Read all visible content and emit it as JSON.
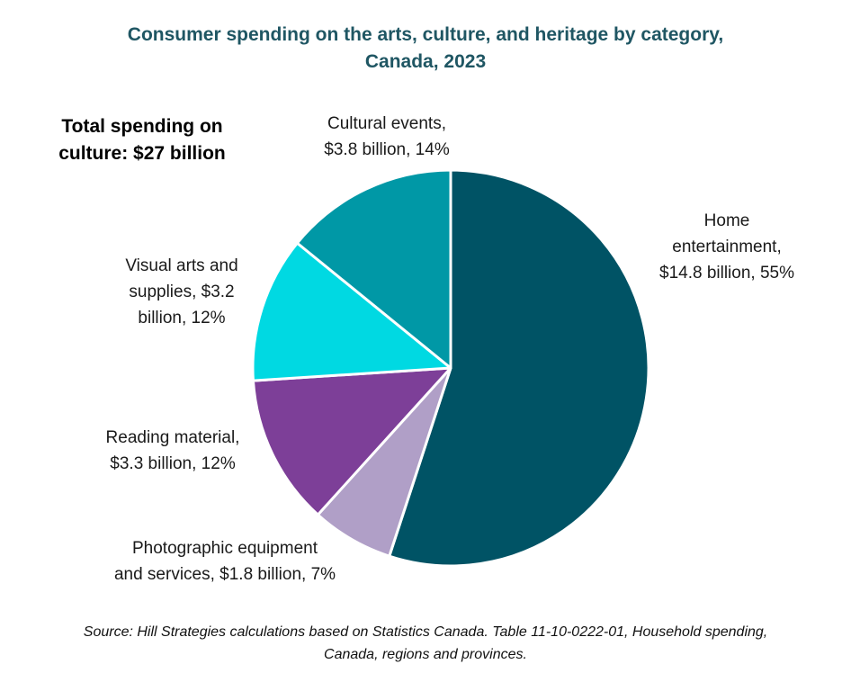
{
  "chart_data": {
    "type": "pie",
    "title": "Consumer spending on the arts, culture, and heritage by category,",
    "subtitle": "Canada, 2023",
    "annotation_lines": [
      "Total spending on",
      "culture: $27 billion"
    ],
    "source_lines": [
      "Source: Hill Strategies calculations based on Statistics Canada. Table 11-10-0222-01, Household spending,",
      "Canada, regions and provinces."
    ],
    "start_angle_deg": 0,
    "direction": "clockwise",
    "slices": [
      {
        "name": "Home entertainment",
        "value": 14.8,
        "percent": 55,
        "color": "#005365",
        "label_lines": [
          "Home",
          "entertainment,",
          "$14.8 billion, 55%"
        ]
      },
      {
        "name": "Photographic equipment and services",
        "value": 1.8,
        "percent": 7,
        "color": "#b09fc7",
        "label_lines": [
          "Photographic equipment",
          "and services, $1.8 billion, 7%"
        ]
      },
      {
        "name": "Reading material",
        "value": 3.3,
        "percent": 12,
        "color": "#7d3f98",
        "label_lines": [
          "Reading material,",
          "$3.3 billion, 12%"
        ]
      },
      {
        "name": "Visual arts and supplies",
        "value": 3.2,
        "percent": 12,
        "color": "#00d9e2",
        "label_lines": [
          "Visual arts and",
          "supplies, $3.2",
          "billion, 12%"
        ]
      },
      {
        "name": "Cultural events",
        "value": 3.8,
        "percent": 14,
        "color": "#0098a6",
        "label_lines": [
          "Cultural events,",
          "$3.8 billion, 14%"
        ]
      }
    ]
  }
}
